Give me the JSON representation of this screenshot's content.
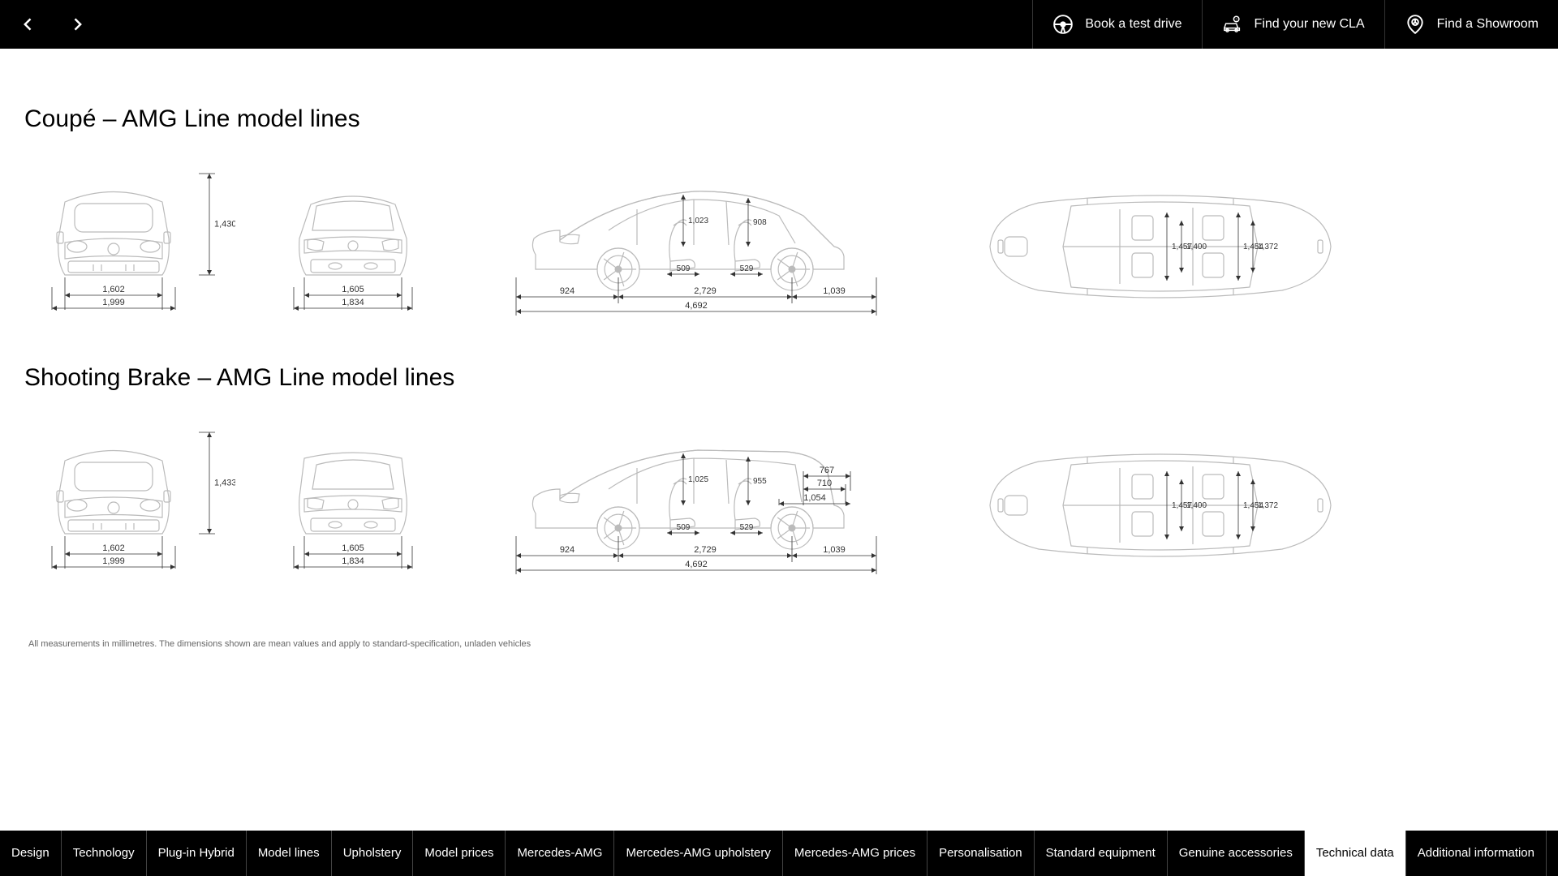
{
  "topbar": {
    "ctas": [
      {
        "label": "Book a test drive",
        "icon": "steering"
      },
      {
        "label": "Find your new CLA",
        "icon": "car-search"
      },
      {
        "label": "Find a Showroom",
        "icon": "pin"
      }
    ]
  },
  "sections": [
    {
      "title": "Coupé – AMG Line model lines",
      "front": {
        "height": "1,430",
        "track": "1,602",
        "width": "1,999"
      },
      "rear": {
        "track": "1,605",
        "width": "1,834"
      },
      "side": {
        "front_over": "924",
        "wheelbase": "2,729",
        "rear_over": "1,039",
        "length": "4,692",
        "headroom_f": "1,023",
        "headroom_r": "908",
        "legroom_f": "509",
        "legroom_r": "529",
        "type": "coupe"
      },
      "top": {
        "shoulder_f": "1,457",
        "shoulder_r": "1,454",
        "elbow_f": "1,400",
        "elbow_r": "1,372"
      }
    },
    {
      "title": "Shooting Brake – AMG Line model lines",
      "front": {
        "height": "1,433",
        "track": "1,602",
        "width": "1,999"
      },
      "rear": {
        "track": "1,605",
        "width": "1,834"
      },
      "side": {
        "front_over": "924",
        "wheelbase": "2,729",
        "rear_over": "1,039",
        "length": "4,692",
        "headroom_f": "1,025",
        "headroom_r": "955",
        "legroom_f": "509",
        "legroom_r": "529",
        "cargo_h": "767",
        "cargo_h2": "710",
        "cargo_l": "1,054",
        "type": "brake"
      },
      "top": {
        "shoulder_f": "1,457",
        "shoulder_r": "1,454",
        "elbow_f": "1,400",
        "elbow_r": "1,372"
      }
    }
  ],
  "footnote": "All measurements in millimetres. The dimensions shown are mean values and apply to standard-specification, unladen vehicles",
  "tabs": [
    {
      "label": "Design",
      "active": false
    },
    {
      "label": "Technology",
      "active": false
    },
    {
      "label": "Plug-in Hybrid",
      "active": false
    },
    {
      "label": "Model lines",
      "active": false
    },
    {
      "label": "Upholstery",
      "active": false
    },
    {
      "label": "Model prices",
      "active": false
    },
    {
      "label": "Mercedes-AMG",
      "active": false
    },
    {
      "label": "Mercedes-AMG upholstery",
      "active": false
    },
    {
      "label": "Mercedes-AMG prices",
      "active": false
    },
    {
      "label": "Personalisation",
      "active": false
    },
    {
      "label": "Standard equipment",
      "active": false
    },
    {
      "label": "Genuine accessories",
      "active": false
    },
    {
      "label": "Technical data",
      "active": true
    },
    {
      "label": "Additional information",
      "active": false
    }
  ],
  "colors": {
    "diagram_stroke": "#bbbbbb",
    "dim_stroke": "#333333",
    "bg": "#ffffff",
    "bar": "#000000"
  }
}
